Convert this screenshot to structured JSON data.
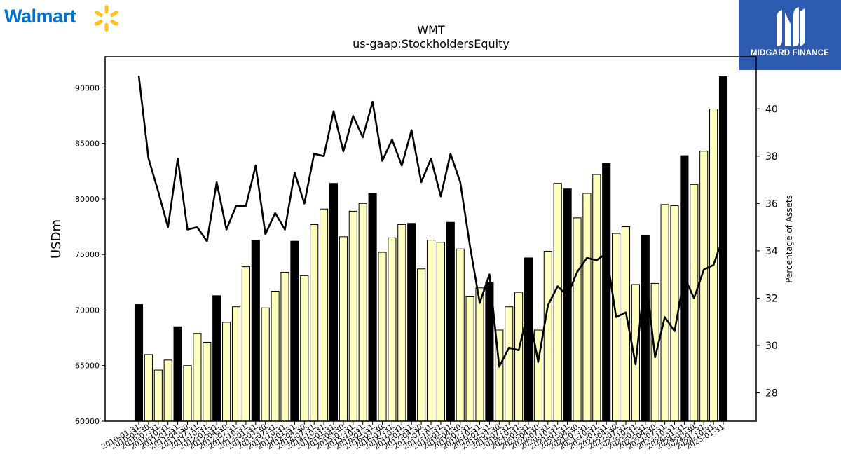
{
  "logos": {
    "left_brand": "Walmart",
    "right_brand": "MIDGARD FINANCE"
  },
  "chart_data": {
    "type": "bar",
    "title": "WMT",
    "subtitle": "us-gaap:StockholdersEquity",
    "ylabel": "USDm",
    "y2label": "Percentage of Assets",
    "ylim": [
      60000,
      92800
    ],
    "y2lim": [
      26.8,
      42.2
    ],
    "yticks": [
      60000,
      65000,
      70000,
      75000,
      80000,
      85000,
      90000
    ],
    "y2ticks": [
      28,
      30,
      32,
      34,
      36,
      38,
      40
    ],
    "categories": [
      "2010-01-31",
      "2010-04-30",
      "2010-07-31",
      "2010-10-31",
      "2011-01-31",
      "2011-04-30",
      "2011-07-31",
      "2011-10-31",
      "2012-01-31",
      "2012-04-30",
      "2012-07-31",
      "2012-10-31",
      "2013-01-31",
      "2013-04-30",
      "2013-07-31",
      "2013-10-31",
      "2014-01-31",
      "2014-04-30",
      "2014-07-31",
      "2014-10-31",
      "2015-01-31",
      "2015-04-30",
      "2015-07-31",
      "2015-10-31",
      "2016-01-31",
      "2016-04-30",
      "2016-07-31",
      "2016-10-31",
      "2017-01-31",
      "2017-04-30",
      "2017-07-31",
      "2017-10-31",
      "2018-01-31",
      "2018-04-30",
      "2018-07-31",
      "2018-10-31",
      "2019-01-31",
      "2019-04-30",
      "2019-07-31",
      "2019-10-31",
      "2020-01-31",
      "2020-04-30",
      "2020-07-31",
      "2020-10-31",
      "2021-01-31",
      "2021-04-30",
      "2021-07-31",
      "2021-10-31",
      "2022-01-31",
      "2022-04-30",
      "2022-07-31",
      "2022-10-31",
      "2023-01-31",
      "2023-04-30",
      "2023-07-31",
      "2023-10-31",
      "2024-01-31",
      "2024-04-30",
      "2024-07-31",
      "2024-10-31",
      "2025-01-31"
    ],
    "series": [
      {
        "name": "StockholdersEquity",
        "fiscal_year_end_color": "#000000",
        "quarter_color": "#ffffc0",
        "values": [
          70500,
          66000,
          64600,
          65500,
          68500,
          65000,
          67900,
          67100,
          71300,
          68900,
          70300,
          73900,
          76300,
          70200,
          71700,
          73400,
          76200,
          73100,
          77700,
          79100,
          81400,
          76600,
          78900,
          79600,
          80500,
          75200,
          76500,
          77700,
          77800,
          73700,
          76300,
          76100,
          77900,
          75500,
          71200,
          72000,
          72500,
          68200,
          70300,
          71600,
          74700,
          68200,
          75300,
          81400,
          80900,
          78300,
          80500,
          82200,
          83200,
          76900,
          77500,
          72300,
          76700,
          72400,
          79500,
          79400,
          83900,
          81300,
          84300,
          88100,
          91000
        ]
      },
      {
        "name": "Percentage of Assets",
        "axis": "right",
        "color": "#000000",
        "values": [
          41.4,
          37.9,
          36.5,
          35.0,
          37.9,
          34.9,
          35.0,
          34.4,
          36.9,
          34.9,
          35.9,
          35.9,
          37.6,
          34.7,
          35.6,
          34.9,
          37.3,
          36.0,
          38.1,
          38.0,
          39.9,
          38.2,
          39.7,
          38.8,
          40.3,
          37.8,
          38.7,
          37.6,
          39.1,
          36.9,
          37.9,
          36.3,
          38.1,
          36.9,
          34.2,
          31.8,
          33.0,
          29.1,
          29.9,
          29.8,
          31.5,
          29.3,
          31.7,
          32.5,
          32.1,
          33.1,
          33.7,
          33.6,
          33.9,
          31.2,
          31.4,
          29.2,
          33.1,
          29.5,
          31.2,
          30.6,
          32.9,
          32.0,
          33.2,
          33.4,
          34.6
        ]
      }
    ],
    "grid": false,
    "legend": "none"
  }
}
